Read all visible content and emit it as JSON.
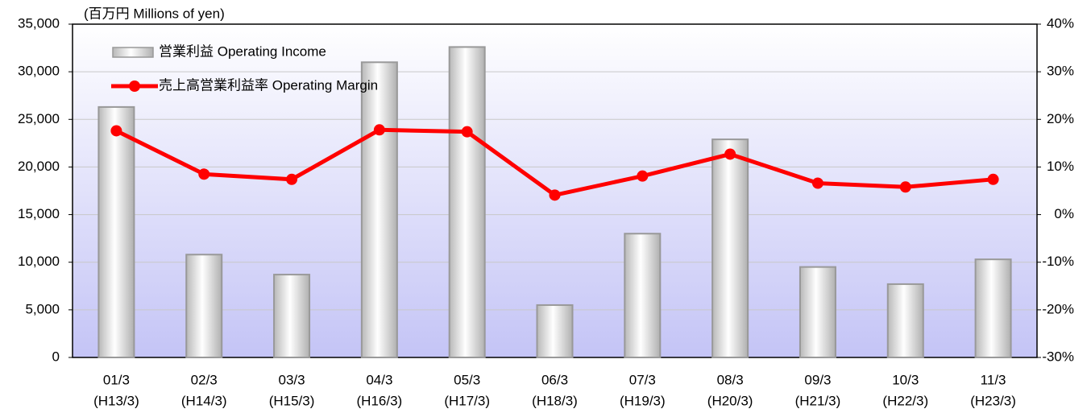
{
  "chart_data": {
    "type": "bar_line",
    "y_label": "(百万円  Millions of yen)",
    "categories": [
      [
        "01/3",
        "(H13/3)"
      ],
      [
        "02/3",
        "(H14/3)"
      ],
      [
        "03/3",
        "(H15/3)"
      ],
      [
        "04/3",
        "(H16/3)"
      ],
      [
        "05/3",
        "(H17/3)"
      ],
      [
        "06/3",
        "(H18/3)"
      ],
      [
        "07/3",
        "(H19/3)"
      ],
      [
        "08/3",
        "(H20/3)"
      ],
      [
        "09/3",
        "(H21/3)"
      ],
      [
        "10/3",
        "(H22/3)"
      ],
      [
        "11/3",
        "(H23/3)"
      ]
    ],
    "series": [
      {
        "name": "営業利益 Operating Income",
        "type": "bar",
        "color": "#b0b0b0",
        "values": [
          26300,
          10800,
          8700,
          31000,
          32600,
          5500,
          13000,
          22900,
          9500,
          7700,
          10300
        ]
      },
      {
        "name": "売上高営業利益率 Operating Margin",
        "type": "line",
        "axis": "y2",
        "color": "#ff0000",
        "values": [
          17.6,
          8.5,
          7.4,
          17.8,
          17.4,
          4.1,
          8.1,
          12.7,
          6.6,
          5.8,
          7.4
        ]
      }
    ],
    "ylim": [
      0,
      35000
    ],
    "yticks": [
      0,
      {
        "value": 5000,
        "label": "5,000"
      },
      {
        "value": 10000,
        "label": "10,000"
      },
      {
        "value": 15000,
        "label": "15,000"
      },
      {
        "value": 20000,
        "label": "20,000"
      },
      {
        "value": 25000,
        "label": "25,000"
      },
      {
        "value": 30000,
        "label": "30,000"
      },
      {
        "value": 35000,
        "label": "35,000"
      }
    ],
    "y2lim": [
      -30,
      40
    ],
    "y2ticks": [
      {
        "value": -30,
        "label": "-30%"
      },
      {
        "value": -20,
        "label": "-20%"
      },
      {
        "value": -10,
        "label": "-10%"
      },
      {
        "value": 0,
        "label": "0%"
      },
      {
        "value": 10,
        "label": "10%"
      },
      {
        "value": 20,
        "label": "20%"
      },
      {
        "value": 30,
        "label": "30%"
      },
      {
        "value": 40,
        "label": "40%"
      }
    ],
    "grid": true,
    "legend": "upper left"
  }
}
